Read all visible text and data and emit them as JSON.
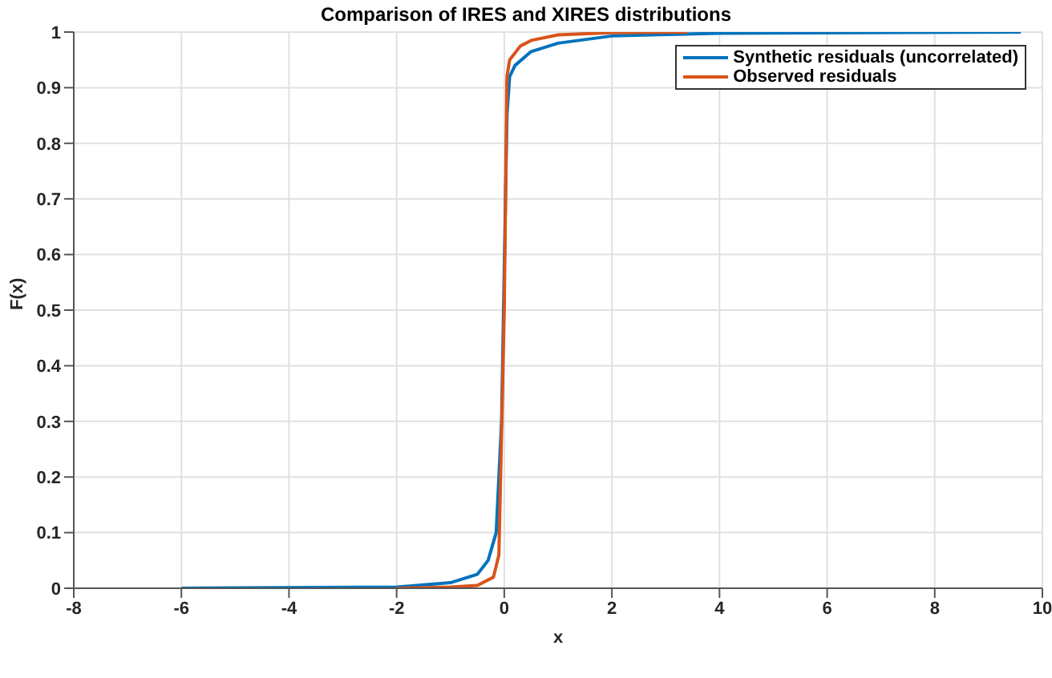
{
  "chart_data": {
    "type": "line",
    "title": "Comparison of IRES and XIRES distributions",
    "xlabel": "x",
    "ylabel": "F(x)",
    "xlim": [
      -8,
      10
    ],
    "xticks": [
      -8,
      -6,
      -4,
      -2,
      0,
      2,
      4,
      6,
      8,
      10
    ],
    "ylim": [
      0,
      1
    ],
    "yticks": [
      0,
      0.1,
      0.2,
      0.3,
      0.4,
      0.5,
      0.6,
      0.7,
      0.8,
      0.9,
      1
    ],
    "grid": true,
    "legend": "top right",
    "marker": "none",
    "line_style": "solid",
    "series": [
      {
        "name": "Synthetic residuals (uncorrelated)",
        "color": "#0072bd",
        "x": [
          -6,
          -2,
          -1,
          -0.5,
          -0.3,
          -0.15,
          -0.05,
          0.05,
          0.1,
          0.2,
          0.5,
          1,
          2,
          4,
          9.6
        ],
        "values": [
          0,
          0.002,
          0.01,
          0.025,
          0.05,
          0.1,
          0.3,
          0.85,
          0.92,
          0.94,
          0.965,
          0.98,
          0.993,
          0.998,
          1
        ]
      },
      {
        "name": "Observed residuals",
        "color": "#d95319",
        "x": [
          -2,
          -1,
          -0.5,
          -0.2,
          -0.1,
          0,
          0.05,
          0.1,
          0.3,
          0.5,
          1,
          2,
          3.4
        ],
        "values": [
          0,
          0.002,
          0.005,
          0.02,
          0.06,
          0.5,
          0.92,
          0.95,
          0.975,
          0.985,
          0.995,
          0.999,
          1
        ]
      }
    ]
  }
}
